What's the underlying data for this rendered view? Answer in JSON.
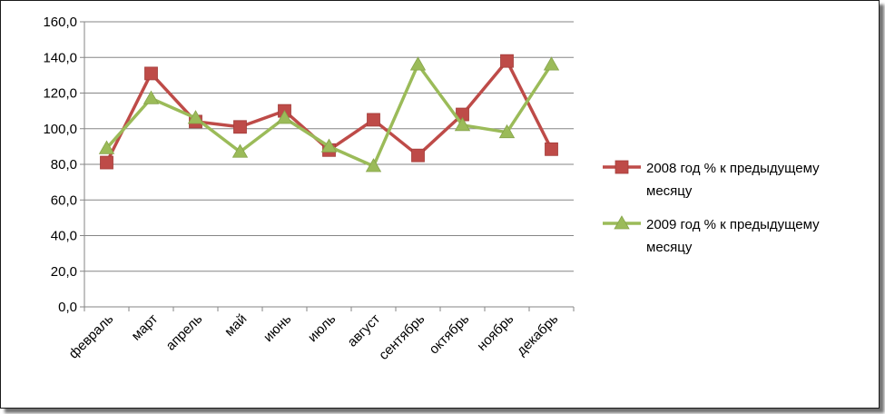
{
  "chart_data": {
    "type": "line",
    "categories": [
      "февраль",
      "март",
      "апрель",
      "май",
      "июнь",
      "июль",
      "август",
      "сентябрь",
      "октябрь",
      "ноябрь",
      "декабрь"
    ],
    "series": [
      {
        "name": "2008 год % к предыдущему месяцу",
        "name_lines": [
          "2008 год % к предыдущему",
          "месяцу"
        ],
        "color": "#be4b48",
        "marker": "square",
        "values": [
          81,
          131,
          104,
          101,
          110,
          88,
          105,
          85,
          108,
          138,
          88.5
        ]
      },
      {
        "name": "2009 год % к предыдущему месяцу",
        "name_lines": [
          "2009 год % к предыдущему",
          "месяцу"
        ],
        "color": "#9bbb59",
        "marker": "triangle",
        "values": [
          89,
          117,
          106,
          87,
          106,
          90,
          79,
          136,
          102,
          98,
          136
        ]
      }
    ],
    "yticks": [
      "0,0",
      "20,0",
      "40,0",
      "60,0",
      "80,0",
      "100,0",
      "120,0",
      "140,0",
      "160,0"
    ],
    "ylim": [
      0,
      160
    ],
    "grid": true,
    "legend": "right"
  }
}
